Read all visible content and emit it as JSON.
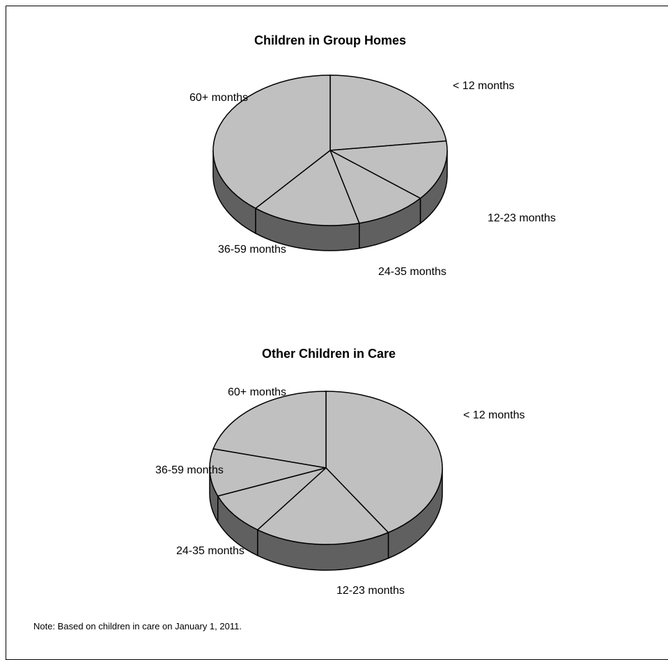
{
  "chart_data": [
    {
      "type": "pie",
      "title": "Children in Group Homes",
      "labels": [
        "< 12 months",
        "12-23 months",
        "24-35 months",
        "36-59 months",
        "60+ months"
      ],
      "values": [
        23,
        13,
        10,
        15,
        39
      ],
      "colors": {
        "top": "#c0c0c0",
        "side": "#606060",
        "stroke": "#000000"
      }
    },
    {
      "type": "pie",
      "title": "Other Children in Care",
      "labels": [
        "< 12 months",
        "12-23 months",
        "24-35 months",
        "36-59 months",
        "60+ months"
      ],
      "values": [
        41,
        19,
        9,
        10,
        21
      ],
      "colors": {
        "top": "#c0c0c0",
        "side": "#606060",
        "stroke": "#000000"
      }
    }
  ],
  "note": "Note: Based on children in care on January 1, 2011."
}
